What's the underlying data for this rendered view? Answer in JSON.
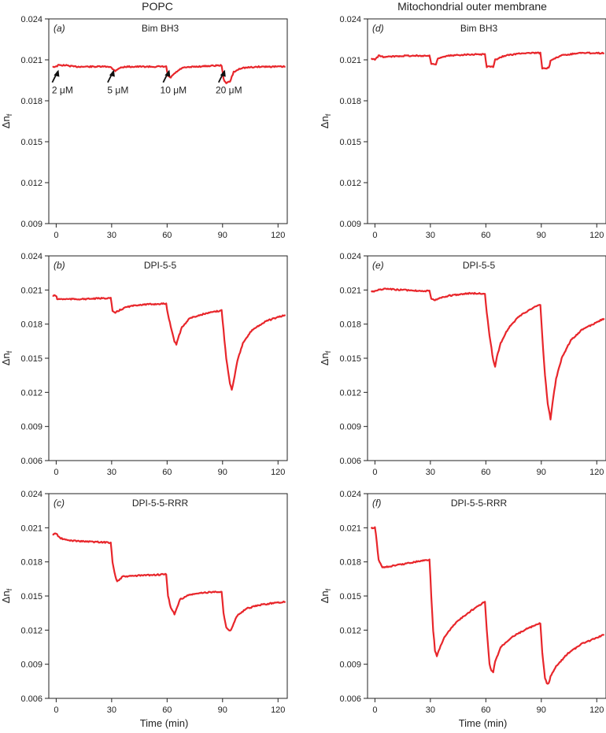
{
  "column_titles": [
    "POPC",
    "Mitochondrial outer membrane"
  ],
  "colors": {
    "trace": "#e8262b",
    "axis": "#222222"
  },
  "chart_data": [
    {
      "type": "line",
      "panel_label": "(a)",
      "title": "Bim BH3",
      "column": "POPC",
      "xlim": [
        -4,
        125
      ],
      "ylim": [
        0.009,
        0.024
      ],
      "xticks": [
        0,
        30,
        60,
        90,
        120
      ],
      "yticks": [
        "0.009",
        "0.012",
        "0.015",
        "0.018",
        "0.021",
        "0.024"
      ],
      "ylabel": "Δn",
      "ylabel_sub": "f",
      "xlabel": "",
      "series": [
        {
          "name": "Bim BH3 on POPC",
          "points": [
            [
              -2,
              0.0205
            ],
            [
              0,
              0.0205
            ],
            [
              1,
              0.0206
            ],
            [
              5,
              0.0206
            ],
            [
              10,
              0.0205
            ],
            [
              20,
              0.0205
            ],
            [
              29.5,
              0.0205
            ],
            [
              30.5,
              0.0203
            ],
            [
              32,
              0.0202
            ],
            [
              34,
              0.0204
            ],
            [
              38,
              0.0205
            ],
            [
              50,
              0.0205
            ],
            [
              59.5,
              0.0205
            ],
            [
              60.5,
              0.0198
            ],
            [
              62,
              0.0197
            ],
            [
              64,
              0.02
            ],
            [
              68,
              0.0204
            ],
            [
              75,
              0.0205
            ],
            [
              89.5,
              0.0206
            ],
            [
              90.5,
              0.0196
            ],
            [
              92,
              0.0193
            ],
            [
              94,
              0.0194
            ],
            [
              96,
              0.0201
            ],
            [
              100,
              0.0204
            ],
            [
              110,
              0.0205
            ],
            [
              124,
              0.0205
            ]
          ]
        }
      ],
      "annotations": [
        {
          "text": "2 μM",
          "x": 0
        },
        {
          "text": "5 μM",
          "x": 30
        },
        {
          "text": "10 μM",
          "x": 60
        },
        {
          "text": "20 μM",
          "x": 90
        }
      ]
    },
    {
      "type": "line",
      "panel_label": "(b)",
      "title": "DPI-5-5",
      "column": "POPC",
      "xlim": [
        -4,
        125
      ],
      "ylim": [
        0.006,
        0.024
      ],
      "xticks": [
        0,
        30,
        60,
        90,
        120
      ],
      "yticks": [
        "0.006",
        "0.009",
        "0.012",
        "0.015",
        "0.018",
        "0.021",
        "0.024"
      ],
      "ylabel": "Δn",
      "ylabel_sub": "f",
      "xlabel": "",
      "series": [
        {
          "name": "DPI-5-5 on POPC",
          "points": [
            [
              -2,
              0.0205
            ],
            [
              0,
              0.0205
            ],
            [
              0.5,
              0.0202
            ],
            [
              5,
              0.0202
            ],
            [
              15,
              0.0202
            ],
            [
              29.5,
              0.0203
            ],
            [
              30.5,
              0.0191
            ],
            [
              32,
              0.019
            ],
            [
              34,
              0.0192
            ],
            [
              38,
              0.0195
            ],
            [
              45,
              0.0197
            ],
            [
              59.5,
              0.0198
            ],
            [
              60.5,
              0.0188
            ],
            [
              62,
              0.0178
            ],
            [
              64,
              0.0165
            ],
            [
              65,
              0.0162
            ],
            [
              66,
              0.0168
            ],
            [
              68,
              0.0177
            ],
            [
              72,
              0.0185
            ],
            [
              80,
              0.0189
            ],
            [
              89.5,
              0.0192
            ],
            [
              90.5,
              0.0175
            ],
            [
              92,
              0.015
            ],
            [
              94,
              0.0128
            ],
            [
              95,
              0.0122
            ],
            [
              96,
              0.013
            ],
            [
              98,
              0.0148
            ],
            [
              101,
              0.0163
            ],
            [
              106,
              0.0175
            ],
            [
              114,
              0.0183
            ],
            [
              124,
              0.0188
            ]
          ]
        }
      ]
    },
    {
      "type": "line",
      "panel_label": "(c)",
      "title": "DPI-5-5-RRR",
      "column": "POPC",
      "xlim": [
        -4,
        125
      ],
      "ylim": [
        0.006,
        0.024
      ],
      "xticks": [
        0,
        30,
        60,
        90,
        120
      ],
      "yticks": [
        "0.006",
        "0.009",
        "0.012",
        "0.015",
        "0.018",
        "0.021",
        "0.024"
      ],
      "ylabel": "Δn",
      "ylabel_sub": "f",
      "xlabel": "Time (min)",
      "series": [
        {
          "name": "DPI-5-5-RRR on POPC",
          "points": [
            [
              -2,
              0.0204
            ],
            [
              0,
              0.0205
            ],
            [
              2,
              0.0201
            ],
            [
              6,
              0.0199
            ],
            [
              15,
              0.0198
            ],
            [
              29.5,
              0.0197
            ],
            [
              30.5,
              0.018
            ],
            [
              32,
              0.0167
            ],
            [
              33,
              0.0163
            ],
            [
              34,
              0.0164
            ],
            [
              36,
              0.0167
            ],
            [
              45,
              0.0168
            ],
            [
              59.5,
              0.0169
            ],
            [
              60.5,
              0.015
            ],
            [
              62,
              0.014
            ],
            [
              64,
              0.0134
            ],
            [
              65,
              0.0138
            ],
            [
              67,
              0.0147
            ],
            [
              72,
              0.0151
            ],
            [
              80,
              0.0153
            ],
            [
              89.5,
              0.0154
            ],
            [
              90.5,
              0.0135
            ],
            [
              92,
              0.0122
            ],
            [
              94,
              0.0119
            ],
            [
              95,
              0.0122
            ],
            [
              98,
              0.0133
            ],
            [
              103,
              0.0139
            ],
            [
              110,
              0.0142
            ],
            [
              118,
              0.0144
            ],
            [
              124,
              0.0145
            ]
          ]
        }
      ]
    },
    {
      "type": "line",
      "panel_label": "(d)",
      "title": "Bim BH3",
      "column": "Mitochondrial outer membrane",
      "xlim": [
        -4,
        125
      ],
      "ylim": [
        0.009,
        0.024
      ],
      "xticks": [
        0,
        30,
        60,
        90,
        120
      ],
      "yticks": [
        "0.009",
        "0.012",
        "0.015",
        "0.018",
        "0.021",
        "0.024"
      ],
      "ylabel": "Δn",
      "ylabel_sub": "f",
      "xlabel": "",
      "series": [
        {
          "name": "Bim BH3 on MOM",
          "points": [
            [
              -2,
              0.0211
            ],
            [
              0,
              0.021
            ],
            [
              2,
              0.0213
            ],
            [
              5,
              0.0212
            ],
            [
              15,
              0.0213
            ],
            [
              29.5,
              0.0213
            ],
            [
              30.5,
              0.0207
            ],
            [
              33,
              0.0207
            ],
            [
              34,
              0.0211
            ],
            [
              40,
              0.0213
            ],
            [
              50,
              0.0214
            ],
            [
              59.5,
              0.0214
            ],
            [
              60.5,
              0.0205
            ],
            [
              64,
              0.0205
            ],
            [
              65,
              0.021
            ],
            [
              70,
              0.0213
            ],
            [
              80,
              0.0215
            ],
            [
              89.5,
              0.0215
            ],
            [
              90.5,
              0.0204
            ],
            [
              94,
              0.0204
            ],
            [
              95,
              0.0209
            ],
            [
              100,
              0.0213
            ],
            [
              110,
              0.0215
            ],
            [
              124,
              0.0215
            ]
          ]
        }
      ]
    },
    {
      "type": "line",
      "panel_label": "(e)",
      "title": "DPI-5-5",
      "column": "Mitochondrial outer membrane",
      "xlim": [
        -4,
        125
      ],
      "ylim": [
        0.006,
        0.024
      ],
      "xticks": [
        0,
        30,
        60,
        90,
        120
      ],
      "yticks": [
        "0.006",
        "0.009",
        "0.012",
        "0.015",
        "0.018",
        "0.021",
        "0.024"
      ],
      "ylabel": "Δn",
      "ylabel_sub": "f",
      "xlabel": "",
      "series": [
        {
          "name": "DPI-5-5 on MOM",
          "points": [
            [
              -2,
              0.0209
            ],
            [
              0,
              0.0209
            ],
            [
              2,
              0.021
            ],
            [
              5,
              0.0211
            ],
            [
              15,
              0.021
            ],
            [
              29.5,
              0.0209
            ],
            [
              30.5,
              0.0202
            ],
            [
              32,
              0.0201
            ],
            [
              35,
              0.0203
            ],
            [
              40,
              0.0205
            ],
            [
              50,
              0.0207
            ],
            [
              59.5,
              0.0207
            ],
            [
              60.5,
              0.019
            ],
            [
              62,
              0.017
            ],
            [
              64,
              0.0148
            ],
            [
              65,
              0.0142
            ],
            [
              66,
              0.0151
            ],
            [
              68,
              0.0163
            ],
            [
              72,
              0.0176
            ],
            [
              78,
              0.0187
            ],
            [
              85,
              0.0194
            ],
            [
              89.5,
              0.0197
            ],
            [
              90.5,
              0.017
            ],
            [
              92,
              0.0135
            ],
            [
              93.5,
              0.011
            ],
            [
              95,
              0.0096
            ],
            [
              96,
              0.011
            ],
            [
              98,
              0.0132
            ],
            [
              101,
              0.015
            ],
            [
              106,
              0.0166
            ],
            [
              112,
              0.0175
            ],
            [
              118,
              0.018
            ],
            [
              124,
              0.0185
            ]
          ]
        }
      ]
    },
    {
      "type": "line",
      "panel_label": "(f)",
      "title": "DPI-5-5-RRR",
      "column": "Mitochondrial outer membrane",
      "xlim": [
        -4,
        125
      ],
      "ylim": [
        0.006,
        0.024
      ],
      "xticks": [
        0,
        30,
        60,
        90,
        120
      ],
      "yticks": [
        "0.006",
        "0.009",
        "0.012",
        "0.015",
        "0.018",
        "0.021",
        "0.024"
      ],
      "ylabel": "Δn",
      "ylabel_sub": "f",
      "xlabel": "Time (min)",
      "series": [
        {
          "name": "DPI-5-5-RRR on MOM",
          "points": [
            [
              -2,
              0.021
            ],
            [
              0,
              0.021
            ],
            [
              0.5,
              0.0205
            ],
            [
              2,
              0.0182
            ],
            [
              4,
              0.0175
            ],
            [
              8,
              0.0176
            ],
            [
              15,
              0.0178
            ],
            [
              25,
              0.0181
            ],
            [
              29.5,
              0.0182
            ],
            [
              30.5,
              0.015
            ],
            [
              31.5,
              0.012
            ],
            [
              32.5,
              0.0102
            ],
            [
              33.5,
              0.0097
            ],
            [
              35,
              0.0104
            ],
            [
              38,
              0.0115
            ],
            [
              44,
              0.0127
            ],
            [
              52,
              0.0137
            ],
            [
              59.5,
              0.0145
            ],
            [
              60.5,
              0.012
            ],
            [
              62,
              0.009
            ],
            [
              63,
              0.0084
            ],
            [
              64,
              0.0083
            ],
            [
              65,
              0.0092
            ],
            [
              68,
              0.0105
            ],
            [
              74,
              0.0114
            ],
            [
              82,
              0.0121
            ],
            [
              89.5,
              0.0126
            ],
            [
              90.5,
              0.01
            ],
            [
              92,
              0.0078
            ],
            [
              93,
              0.0073
            ],
            [
              94,
              0.0073
            ],
            [
              95,
              0.0079
            ],
            [
              98,
              0.0088
            ],
            [
              104,
              0.0099
            ],
            [
              112,
              0.0108
            ],
            [
              124,
              0.0116
            ]
          ]
        }
      ]
    }
  ]
}
